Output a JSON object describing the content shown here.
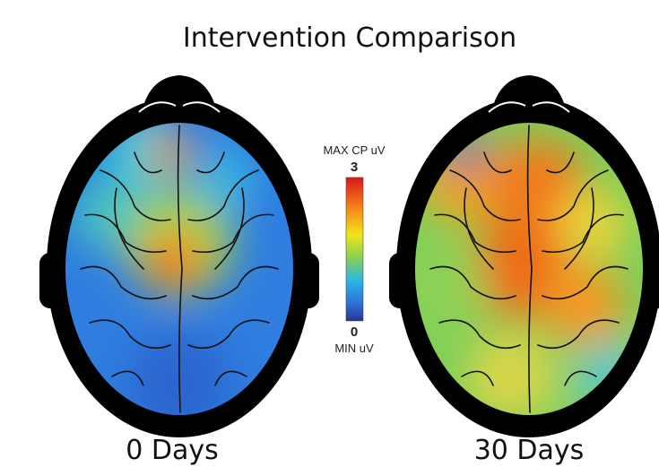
{
  "title": "Intervention Comparison",
  "panels": [
    {
      "label": "0 Days"
    },
    {
      "label": "30 Days"
    }
  ],
  "colorbar": {
    "max_label": "MAX CP uV",
    "max": "3",
    "min": "0",
    "min_label": "MIN uV"
  }
}
